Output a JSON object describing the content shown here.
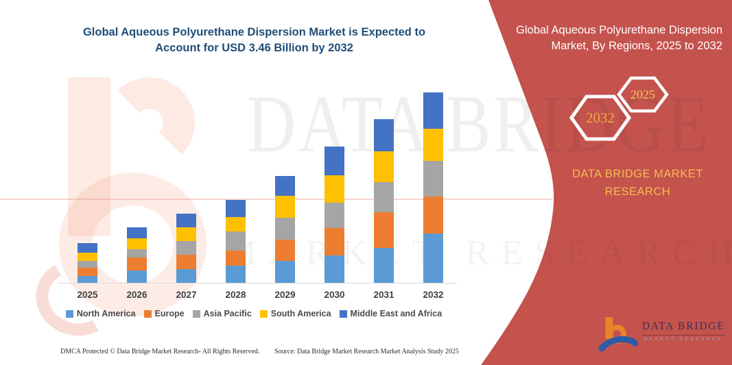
{
  "page": {
    "accent_red": "#C4524D",
    "title_blue": "#1F4E79",
    "gold": "#F6BE4D",
    "background": "#FFFFFF"
  },
  "header": {
    "title_line1": "Global Aqueous Polyurethane Dispersion Market is Expected to",
    "title_line2": "Account for USD 3.46 Billion by 2032"
  },
  "side_panel": {
    "title": "Global Aqueous Polyurethane Dispersion Market, By Regions, 2025 to 2032",
    "badge_front": "2025",
    "badge_back": "2032",
    "brand_line": "DATA BRIDGE MARKET RESEARCH"
  },
  "logo": {
    "name": "DATA BRIDGE",
    "tagline": "MARKET RESEARCH"
  },
  "watermark": {
    "row1": "DATA BRIDGE",
    "row2": "MARKET RESEARCH"
  },
  "footer": {
    "dmca": "DMCA Protected © Data Bridge Market Research-  All Rights Reserved.",
    "source": "Source: Data Bridge Market Research  Market Analysis Study 2025"
  },
  "chart_data": {
    "type": "bar",
    "stacked": true,
    "title": "Global Aqueous Polyurethane Dispersion Market is Expected to Account for USD 3.46 Billion by 2032",
    "unit": "USD Billion",
    "xlabel": "",
    "ylabel": "",
    "y_axis_visible": false,
    "gridlines": false,
    "legend_position": "bottom",
    "categories": [
      "2025",
      "2026",
      "2027",
      "2028",
      "2029",
      "2030",
      "2031",
      "2032"
    ],
    "series": [
      {
        "name": "North America",
        "color": "#5B9BD5",
        "values": [
          0.13,
          0.22,
          0.25,
          0.31,
          0.4,
          0.5,
          0.63,
          0.9
        ]
      },
      {
        "name": "Europe",
        "color": "#ED7D31",
        "values": [
          0.14,
          0.24,
          0.26,
          0.27,
          0.38,
          0.49,
          0.65,
          0.67
        ]
      },
      {
        "name": "Asia Pacific",
        "color": "#A5A5A5",
        "values": [
          0.13,
          0.15,
          0.25,
          0.35,
          0.4,
          0.47,
          0.55,
          0.65
        ]
      },
      {
        "name": "South America",
        "color": "#FFC000",
        "values": [
          0.15,
          0.2,
          0.25,
          0.26,
          0.4,
          0.49,
          0.56,
          0.58
        ]
      },
      {
        "name": "Middle East and Africa",
        "color": "#4472C4",
        "values": [
          0.17,
          0.2,
          0.25,
          0.32,
          0.37,
          0.53,
          0.59,
          0.66
        ]
      }
    ],
    "totals": [
      0.72,
      1.01,
      1.26,
      1.51,
      1.95,
      2.48,
      2.98,
      3.46
    ]
  }
}
